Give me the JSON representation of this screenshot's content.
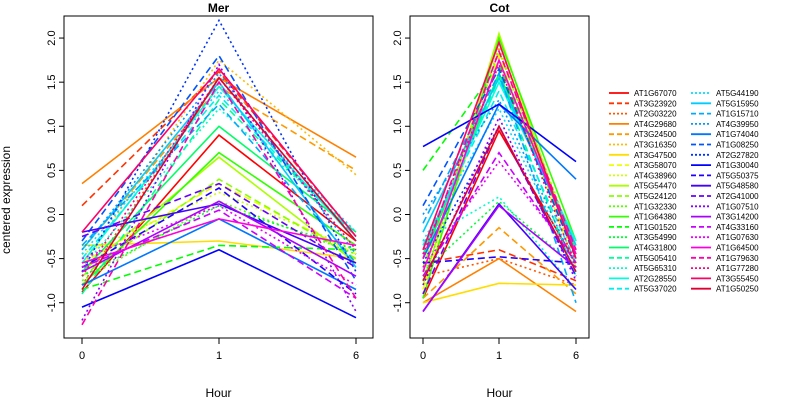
{
  "chart_data": {
    "type": "line",
    "ylabel": "centered expression",
    "x_categories": [
      "0",
      "1",
      "6"
    ],
    "y_ticks": [
      "-1.0",
      "-0.5",
      "0.0",
      "0.5",
      "1.0",
      "1.5",
      "2.0"
    ],
    "ylim": [
      -1.4,
      2.25
    ],
    "panels": [
      {
        "title": "Mer",
        "xlabel": "Hour",
        "series": [
          {
            "name": "AT1G67070",
            "color": "#ff0000",
            "dash": "solid",
            "values": [
              -0.88,
              0.9,
              -0.3
            ]
          },
          {
            "name": "AT3G23920",
            "color": "#ff3300",
            "dash": "dashed",
            "values": [
              0.1,
              1.62,
              -0.25
            ]
          },
          {
            "name": "AT2G03220",
            "color": "#ff5500",
            "dash": "dotted",
            "values": [
              -0.8,
              1.55,
              -0.3
            ]
          },
          {
            "name": "AT4G29680",
            "color": "#ff8000",
            "dash": "solid",
            "values": [
              0.35,
              1.55,
              0.65
            ]
          },
          {
            "name": "AT3G24500",
            "color": "#ff9900",
            "dash": "dashed",
            "values": [
              -0.4,
              1.45,
              0.5
            ]
          },
          {
            "name": "AT3G16350",
            "color": "#ffbb00",
            "dash": "dotted",
            "values": [
              -0.6,
              1.75,
              0.45
            ]
          },
          {
            "name": "AT3G47500",
            "color": "#ffdd00",
            "dash": "solid",
            "values": [
              -0.35,
              -0.3,
              -0.5
            ]
          },
          {
            "name": "AT3G58070",
            "color": "#eeff00",
            "dash": "dashed",
            "values": [
              -0.55,
              0.35,
              -0.45
            ]
          },
          {
            "name": "AT4G38960",
            "color": "#ccff00",
            "dash": "dotted",
            "values": [
              -0.45,
              0.25,
              -0.4
            ]
          },
          {
            "name": "AT5G54470",
            "color": "#aaff00",
            "dash": "solid",
            "values": [
              -0.65,
              0.65,
              -0.55
            ]
          },
          {
            "name": "AT5G24120",
            "color": "#88ff00",
            "dash": "dashed",
            "values": [
              -0.7,
              0.4,
              -0.5
            ]
          },
          {
            "name": "AT1G32330",
            "color": "#55ff00",
            "dash": "dotted",
            "values": [
              -0.75,
              0.15,
              -0.45
            ]
          },
          {
            "name": "AT1G64380",
            "color": "#33ff00",
            "dash": "solid",
            "values": [
              -0.8,
              0.7,
              -0.35
            ]
          },
          {
            "name": "AT1G01520",
            "color": "#00ff00",
            "dash": "dashed",
            "values": [
              -0.85,
              -0.35,
              -0.4
            ]
          },
          {
            "name": "AT3G54990",
            "color": "#00ff33",
            "dash": "dotted",
            "values": [
              -0.7,
              0.1,
              -0.4
            ]
          },
          {
            "name": "AT4G31800",
            "color": "#00ff66",
            "dash": "solid",
            "values": [
              -0.65,
              1.0,
              -0.2
            ]
          },
          {
            "name": "AT5G05410",
            "color": "#00ff99",
            "dash": "dashed",
            "values": [
              -0.9,
              1.3,
              -0.25
            ]
          },
          {
            "name": "AT5G65310",
            "color": "#00ffcc",
            "dash": "dotted",
            "values": [
              -0.6,
              1.2,
              -0.2
            ]
          },
          {
            "name": "AT2G28550",
            "color": "#00ffdd",
            "dash": "solid",
            "values": [
              -0.55,
              1.45,
              -0.3
            ]
          },
          {
            "name": "AT5G37020",
            "color": "#00eeee",
            "dash": "dashed",
            "values": [
              -0.5,
              1.35,
              -0.25
            ]
          },
          {
            "name": "AT5G44190",
            "color": "#00ddff",
            "dash": "dotted",
            "values": [
              -0.45,
              1.4,
              -0.2
            ]
          },
          {
            "name": "AT5G15950",
            "color": "#00ccff",
            "dash": "solid",
            "values": [
              -0.4,
              1.5,
              -0.6
            ]
          },
          {
            "name": "AT1G15710",
            "color": "#00aaff",
            "dash": "dashed",
            "values": [
              -0.35,
              1.25,
              -0.55
            ]
          },
          {
            "name": "AT4G39950",
            "color": "#0099ff",
            "dash": "dotted",
            "values": [
              -0.4,
              1.6,
              -0.45
            ]
          },
          {
            "name": "AT1G74040",
            "color": "#0077ff",
            "dash": "solid",
            "values": [
              -0.8,
              -0.05,
              -0.85
            ]
          },
          {
            "name": "AT1G08250",
            "color": "#0055ff",
            "dash": "dashed",
            "values": [
              -0.3,
              1.8,
              -0.75
            ]
          },
          {
            "name": "AT2G27820",
            "color": "#0033ff",
            "dash": "dotted",
            "values": [
              -0.65,
              2.2,
              -0.65
            ]
          },
          {
            "name": "AT1G30040",
            "color": "#0000ff",
            "dash": "solid",
            "values": [
              -1.05,
              -0.4,
              -1.17
            ]
          },
          {
            "name": "AT5G50375",
            "color": "#2200ff",
            "dash": "dashed",
            "values": [
              -0.6,
              0.3,
              -0.9
            ]
          },
          {
            "name": "AT5G48580",
            "color": "#4400ff",
            "dash": "solid",
            "values": [
              -0.2,
              0.12,
              -0.55
            ]
          },
          {
            "name": "AT2G41000",
            "color": "#6600ff",
            "dash": "dashed",
            "values": [
              -0.25,
              0.35,
              -0.6
            ]
          },
          {
            "name": "AT1G07510",
            "color": "#8800ff",
            "dash": "dotted",
            "values": [
              -1.2,
              1.7,
              -1.1
            ]
          },
          {
            "name": "AT3G14200",
            "color": "#aa00ff",
            "dash": "solid",
            "values": [
              -0.65,
              0.15,
              -0.7
            ]
          },
          {
            "name": "AT4G33160",
            "color": "#cc00ff",
            "dash": "dashed",
            "values": [
              -0.6,
              0.05,
              -0.95
            ]
          },
          {
            "name": "AT1G07630",
            "color": "#ee00ff",
            "dash": "dotted",
            "values": [
              -0.5,
              0.1,
              -0.8
            ]
          },
          {
            "name": "AT1G64500",
            "color": "#ff00dd",
            "dash": "solid",
            "values": [
              -0.55,
              -0.05,
              -0.35
            ]
          },
          {
            "name": "AT1G79630",
            "color": "#ff00aa",
            "dash": "dashed",
            "values": [
              -1.25,
              1.5,
              -0.95
            ]
          },
          {
            "name": "AT1G77280",
            "color": "#ff0088",
            "dash": "dotted",
            "values": [
              -0.7,
              1.55,
              -0.4
            ]
          },
          {
            "name": "AT3G55450",
            "color": "#ff0066",
            "dash": "solid",
            "values": [
              -0.2,
              1.65,
              -0.25
            ]
          },
          {
            "name": "AT1G50250",
            "color": "#dd0033",
            "dash": "solid",
            "values": [
              -0.85,
              1.55,
              -0.3
            ]
          }
        ]
      },
      {
        "title": "Cot",
        "xlabel": "Hour",
        "series": [
          {
            "name": "AT1G67070",
            "color": "#ff0000",
            "dash": "solid",
            "values": [
              -0.95,
              0.95,
              -0.55
            ]
          },
          {
            "name": "AT3G23920",
            "color": "#ff3300",
            "dash": "dashed",
            "values": [
              -0.55,
              -0.4,
              -0.75
            ]
          },
          {
            "name": "AT2G03220",
            "color": "#ff5500",
            "dash": "dotted",
            "values": [
              -0.7,
              -0.5,
              -0.8
            ]
          },
          {
            "name": "AT4G29680",
            "color": "#ff8000",
            "dash": "solid",
            "values": [
              -1.0,
              -0.5,
              -1.1
            ]
          },
          {
            "name": "AT3G24500",
            "color": "#ff9900",
            "dash": "dashed",
            "values": [
              -0.95,
              -0.15,
              -0.9
            ]
          },
          {
            "name": "AT3G16350",
            "color": "#ffbb00",
            "dash": "dotted",
            "values": [
              -0.9,
              1.9,
              -0.55
            ]
          },
          {
            "name": "AT3G47500",
            "color": "#ffdd00",
            "dash": "solid",
            "values": [
              -1.0,
              -0.78,
              -0.8
            ]
          },
          {
            "name": "AT3G58070",
            "color": "#eeff00",
            "dash": "dashed",
            "values": [
              -0.85,
              1.8,
              -0.6
            ]
          },
          {
            "name": "AT4G38960",
            "color": "#ccff00",
            "dash": "dotted",
            "values": [
              -0.7,
              1.95,
              -0.4
            ]
          },
          {
            "name": "AT5G54470",
            "color": "#aaff00",
            "dash": "solid",
            "values": [
              -0.8,
              2.05,
              -0.5
            ]
          },
          {
            "name": "AT5G24120",
            "color": "#88ff00",
            "dash": "dashed",
            "values": [
              -0.6,
              1.85,
              -0.45
            ]
          },
          {
            "name": "AT1G32330",
            "color": "#55ff00",
            "dash": "dotted",
            "values": [
              -0.75,
              1.75,
              -0.35
            ]
          },
          {
            "name": "AT1G64380",
            "color": "#33ff00",
            "dash": "solid",
            "values": [
              -0.95,
              2.0,
              -0.3
            ]
          },
          {
            "name": "AT1G01520",
            "color": "#00ff00",
            "dash": "dashed",
            "values": [
              0.5,
              1.7,
              -0.5
            ]
          },
          {
            "name": "AT3G54990",
            "color": "#00ff33",
            "dash": "dotted",
            "values": [
              -0.65,
              0.15,
              -0.6
            ]
          },
          {
            "name": "AT4G31800",
            "color": "#00ff66",
            "dash": "solid",
            "values": [
              -0.5,
              1.6,
              -0.4
            ]
          },
          {
            "name": "AT5G05410",
            "color": "#00ff99",
            "dash": "dashed",
            "values": [
              -0.45,
              1.55,
              -0.7
            ]
          },
          {
            "name": "AT5G65310",
            "color": "#00ffcc",
            "dash": "dotted",
            "values": [
              -0.3,
              0.2,
              -0.85
            ]
          },
          {
            "name": "AT2G28550",
            "color": "#00ffdd",
            "dash": "solid",
            "values": [
              -0.4,
              1.5,
              -0.3
            ]
          },
          {
            "name": "AT5G37020",
            "color": "#00eeee",
            "dash": "dashed",
            "values": [
              -0.35,
              1.4,
              -0.55
            ]
          },
          {
            "name": "AT5G44190",
            "color": "#00ddff",
            "dash": "dotted",
            "values": [
              -0.3,
              1.2,
              -0.65
            ]
          },
          {
            "name": "AT5G15950",
            "color": "#00ccff",
            "dash": "solid",
            "values": [
              -0.2,
              1.55,
              -0.35
            ]
          },
          {
            "name": "AT1G15710",
            "color": "#00aaff",
            "dash": "dashed",
            "values": [
              -0.1,
              1.6,
              -1.0
            ]
          },
          {
            "name": "AT4G39950",
            "color": "#0099ff",
            "dash": "dotted",
            "values": [
              0.0,
              1.3,
              -0.6
            ]
          },
          {
            "name": "AT1G74040",
            "color": "#0077ff",
            "dash": "solid",
            "values": [
              -0.5,
              1.25,
              0.4
            ]
          },
          {
            "name": "AT1G08250",
            "color": "#0055ff",
            "dash": "dashed",
            "values": [
              0.1,
              1.65,
              -0.5
            ]
          },
          {
            "name": "AT2G27820",
            "color": "#0033ff",
            "dash": "dotted",
            "values": [
              -0.55,
              1.0,
              -0.7
            ]
          },
          {
            "name": "AT1G30040",
            "color": "#0000ff",
            "dash": "solid",
            "values": [
              0.77,
              1.25,
              0.6
            ]
          },
          {
            "name": "AT5G50375",
            "color": "#2200ff",
            "dash": "dashed",
            "values": [
              -0.55,
              -0.48,
              -0.55
            ]
          },
          {
            "name": "AT5G48580",
            "color": "#4400ff",
            "dash": "solid",
            "values": [
              -1.1,
              0.12,
              -0.85
            ]
          },
          {
            "name": "AT2G41000",
            "color": "#6600ff",
            "dash": "dashed",
            "values": [
              -0.9,
              1.0,
              -0.7
            ]
          },
          {
            "name": "AT1G07510",
            "color": "#8800ff",
            "dash": "dotted",
            "values": [
              -0.8,
              1.1,
              -0.75
            ]
          },
          {
            "name": "AT3G14200",
            "color": "#aa00ff",
            "dash": "solid",
            "values": [
              -1.1,
              0.1,
              -0.6
            ]
          },
          {
            "name": "AT4G33160",
            "color": "#cc00ff",
            "dash": "dashed",
            "values": [
              -0.7,
              0.7,
              -0.55
            ]
          },
          {
            "name": "AT1G07630",
            "color": "#ee00ff",
            "dash": "dotted",
            "values": [
              -0.6,
              0.6,
              -0.5
            ]
          },
          {
            "name": "AT1G64500",
            "color": "#ff00dd",
            "dash": "solid",
            "values": [
              -0.65,
              1.75,
              -0.45
            ]
          },
          {
            "name": "AT1G79630",
            "color": "#ff00aa",
            "dash": "dashed",
            "values": [
              -0.5,
              1.85,
              -0.4
            ]
          },
          {
            "name": "AT1G77280",
            "color": "#ff0088",
            "dash": "dotted",
            "values": [
              -0.45,
              1.7,
              -0.6
            ]
          },
          {
            "name": "AT3G55450",
            "color": "#ff0066",
            "dash": "solid",
            "values": [
              -0.4,
              1.95,
              -0.5
            ]
          },
          {
            "name": "AT1G50250",
            "color": "#dd0033",
            "dash": "solid",
            "values": [
              -0.75,
              1.0,
              -0.65
            ]
          }
        ]
      }
    ]
  }
}
